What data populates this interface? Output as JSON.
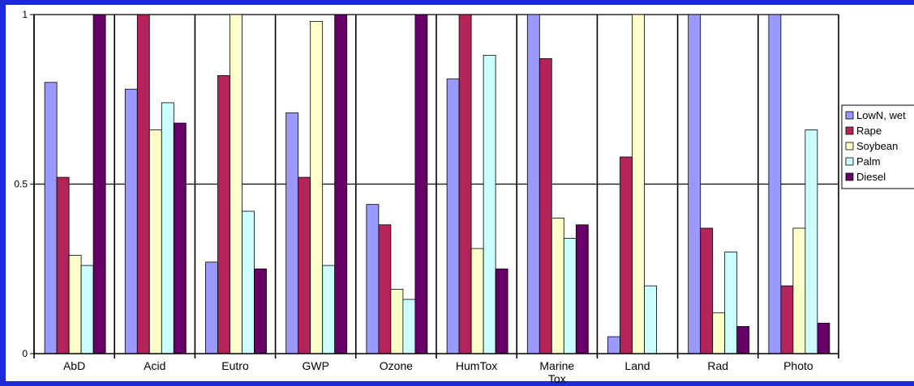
{
  "chart_data": {
    "type": "bar",
    "title": "",
    "xlabel": "",
    "ylabel": "",
    "ylim": [
      0,
      1
    ],
    "yticks": [
      "0",
      "0.5",
      "1"
    ],
    "grid": "horizontal at 0.5 and 1",
    "legend_position": "right",
    "categories": [
      "AbD",
      "Acid",
      "Eutro",
      "GWP",
      "Ozone",
      "HumTox",
      "Marine Tox",
      "Land",
      "Rad",
      "Photo"
    ],
    "series": [
      {
        "name": "LowN, wet",
        "color": "#9999ff",
        "values": [
          0.8,
          0.78,
          0.27,
          0.71,
          0.44,
          0.81,
          1.0,
          0.05,
          1.0,
          1.0
        ]
      },
      {
        "name": "Rape",
        "color": "#b3245a",
        "values": [
          0.52,
          1.0,
          0.82,
          0.52,
          0.38,
          1.0,
          0.87,
          0.58,
          0.37,
          0.2
        ]
      },
      {
        "name": "Soybean",
        "color": "#ffffcc",
        "values": [
          0.29,
          0.66,
          1.0,
          0.98,
          0.19,
          0.31,
          0.4,
          1.0,
          0.12,
          0.37
        ]
      },
      {
        "name": "Palm",
        "color": "#ccffff",
        "values": [
          0.26,
          0.74,
          0.42,
          0.26,
          0.16,
          0.88,
          0.34,
          0.2,
          0.3,
          0.66
        ]
      },
      {
        "name": "Diesel",
        "color": "#660066",
        "values": [
          1.0,
          0.68,
          0.25,
          1.0,
          1.0,
          0.25,
          0.38,
          0.0,
          0.08,
          0.09
        ]
      }
    ]
  }
}
